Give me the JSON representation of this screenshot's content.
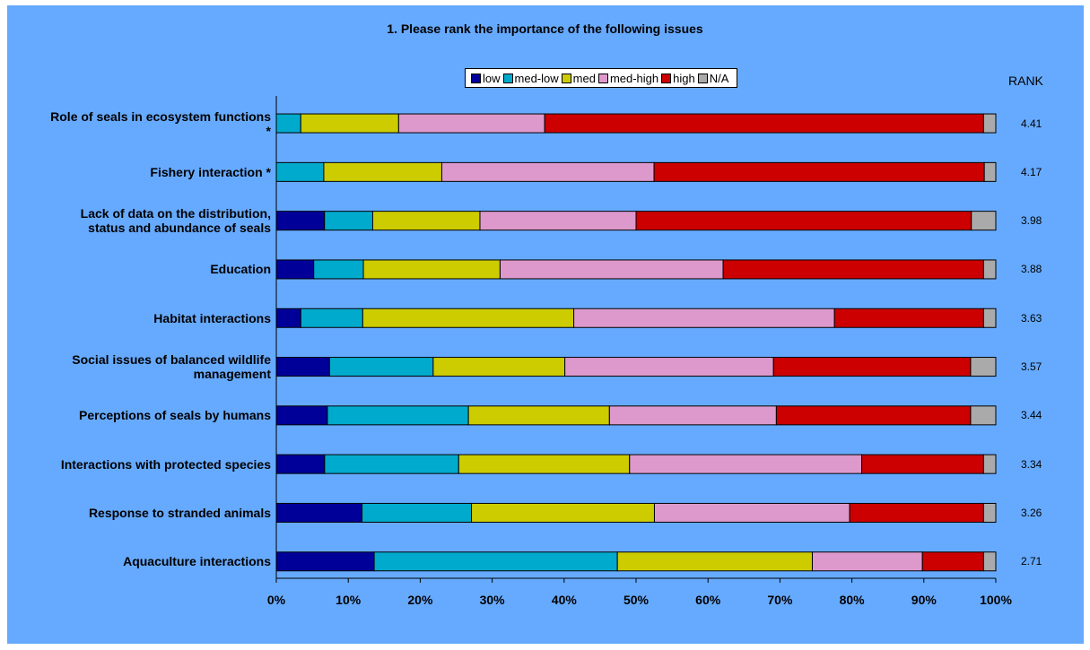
{
  "chart_data": {
    "type": "bar",
    "orientation": "horizontal",
    "stacked": "percent",
    "title": "1. Please rank the importance of the following issues",
    "legend_position": "top",
    "rank_header": "RANK",
    "categories": [
      "Role of seals in ecosystem functions *",
      "Fishery interaction *",
      "Lack of data on the distribution, status and abundance of seals",
      "Education",
      "Habitat interactions",
      "Social issues of balanced wildlife management",
      "Perceptions of seals by humans",
      "Interactions with protected species",
      "Response to stranded animals",
      "Aquaculture interactions"
    ],
    "category_lines": [
      [
        "Role of seals in ecosystem functions",
        "*"
      ],
      [
        "Fishery interaction *"
      ],
      [
        "Lack of data on the distribution,",
        "status and abundance of seals"
      ],
      [
        "Education"
      ],
      [
        "Habitat interactions"
      ],
      [
        "Social issues of balanced wildlife",
        "management"
      ],
      [
        "Perceptions of seals by humans"
      ],
      [
        "Interactions with protected species"
      ],
      [
        "Response to stranded animals"
      ],
      [
        "Aquaculture interactions"
      ]
    ],
    "ranks": [
      "4.41",
      "4.17",
      "3.98",
      "3.88",
      "3.63",
      "3.57",
      "3.44",
      "3.34",
      "3.26",
      "2.71"
    ],
    "series": [
      {
        "name": "low",
        "color": "#000099",
        "values": [
          0,
          0,
          6.7,
          5.2,
          3.4,
          7.4,
          7.1,
          6.7,
          11.9,
          13.6
        ]
      },
      {
        "name": "med-low",
        "color": "#00aacc",
        "values": [
          3.4,
          6.6,
          6.7,
          6.9,
          8.6,
          14.4,
          19.6,
          18.6,
          15.2,
          33.8
        ]
      },
      {
        "name": "med",
        "color": "#cccc00",
        "values": [
          13.6,
          16.4,
          14.9,
          19.0,
          29.3,
          18.3,
          19.6,
          23.7,
          25.4,
          27.1
        ]
      },
      {
        "name": "med-high",
        "color": "#dd99cc",
        "values": [
          20.3,
          29.5,
          21.7,
          31.0,
          36.2,
          29.0,
          23.2,
          32.2,
          27.1,
          15.3
        ]
      },
      {
        "name": "high",
        "color": "#cc0000",
        "values": [
          61.0,
          45.9,
          46.6,
          36.2,
          20.7,
          27.4,
          27.0,
          16.9,
          18.6,
          8.5
        ]
      },
      {
        "name": "N/A",
        "color": "#aaaaaa",
        "values": [
          1.7,
          1.6,
          3.4,
          1.7,
          1.7,
          3.5,
          3.5,
          1.7,
          1.7,
          1.7
        ]
      }
    ],
    "x_ticks": [
      "0%",
      "10%",
      "20%",
      "30%",
      "40%",
      "50%",
      "60%",
      "70%",
      "80%",
      "90%",
      "100%"
    ],
    "xlim": [
      0,
      100
    ],
    "grid": false
  }
}
